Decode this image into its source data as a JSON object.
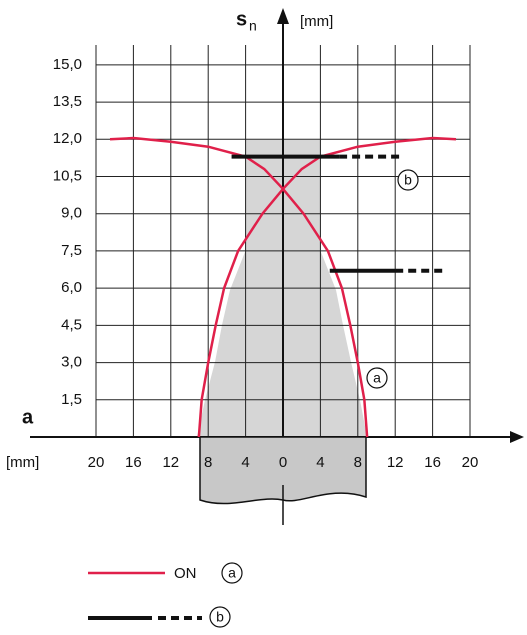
{
  "chart_data": {
    "type": "line",
    "y_label_symbol": "s",
    "y_label_subscript": "n",
    "y_unit": "[mm]",
    "x_label": "a",
    "x_unit": "[mm]",
    "xlim": [
      -20,
      20
    ],
    "ylim": [
      0,
      15.8
    ],
    "grid": true,
    "xticks": [
      {
        "value": -20,
        "label": "20"
      },
      {
        "value": -16,
        "label": "16"
      },
      {
        "value": -12,
        "label": "12"
      },
      {
        "value": -8,
        "label": "8"
      },
      {
        "value": -4,
        "label": "4"
      },
      0,
      {
        "value": 4,
        "label": "4"
      },
      {
        "value": 8,
        "label": "8"
      },
      {
        "value": 12,
        "label": "12"
      },
      {
        "value": 16,
        "label": "16"
      },
      {
        "value": 20,
        "label": "20"
      }
    ],
    "yticks": [
      {
        "value": 1.5,
        "label": "1,5"
      },
      {
        "value": 3,
        "label": "3,0"
      },
      {
        "value": 4.5,
        "label": "4,5"
      },
      {
        "value": 6,
        "label": "6,0"
      },
      {
        "value": 7.5,
        "label": "7,5"
      },
      {
        "value": 9,
        "label": "9,0"
      },
      {
        "value": 10.5,
        "label": "10,5"
      },
      {
        "value": 12,
        "label": "12,0"
      },
      {
        "value": 13.5,
        "label": "13,5"
      },
      {
        "value": 15,
        "label": "15,0"
      }
    ],
    "series": [
      {
        "color": "#e0204a",
        "style": "solid",
        "x": [
          -9,
          -8.7,
          -8,
          -7.2,
          -6.3,
          -4.8,
          -2.2,
          0,
          2,
          4,
          8,
          12,
          16,
          18.5
        ],
        "values": [
          0,
          1.5,
          3,
          4.5,
          6,
          7.5,
          9,
          10,
          10.8,
          11.3,
          11.7,
          11.9,
          12.05,
          12
        ]
      },
      {
        "color": "#e0204a",
        "style": "solid",
        "x": [
          9,
          8.7,
          8,
          7.2,
          6.3,
          4.8,
          2.2,
          0,
          -2,
          -4,
          -8,
          -12,
          -16,
          -18.5
        ],
        "values": [
          0,
          1.5,
          3,
          4.5,
          6,
          7.5,
          9,
          10,
          10.8,
          11.3,
          11.7,
          11.9,
          12.05,
          12
        ]
      },
      {
        "color": "#111111",
        "style": "solid",
        "x": [
          -5.5,
          6
        ],
        "values": [
          11.3,
          11.3
        ]
      },
      {
        "color": "#111111",
        "style": "dashed",
        "x": [
          6,
          12.5
        ],
        "values": [
          11.3,
          11.3
        ]
      },
      {
        "color": "#111111",
        "style": "solid",
        "x": [
          5,
          12
        ],
        "values": [
          6.7,
          6.7
        ]
      },
      {
        "color": "#111111",
        "style": "dashed",
        "x": [
          12,
          17.5
        ],
        "values": [
          6.7,
          6.7
        ]
      }
    ],
    "annotations": [
      "a",
      "b"
    ],
    "legend": [
      {
        "label": "ON",
        "key": "a"
      },
      {
        "key": "b"
      }
    ]
  }
}
